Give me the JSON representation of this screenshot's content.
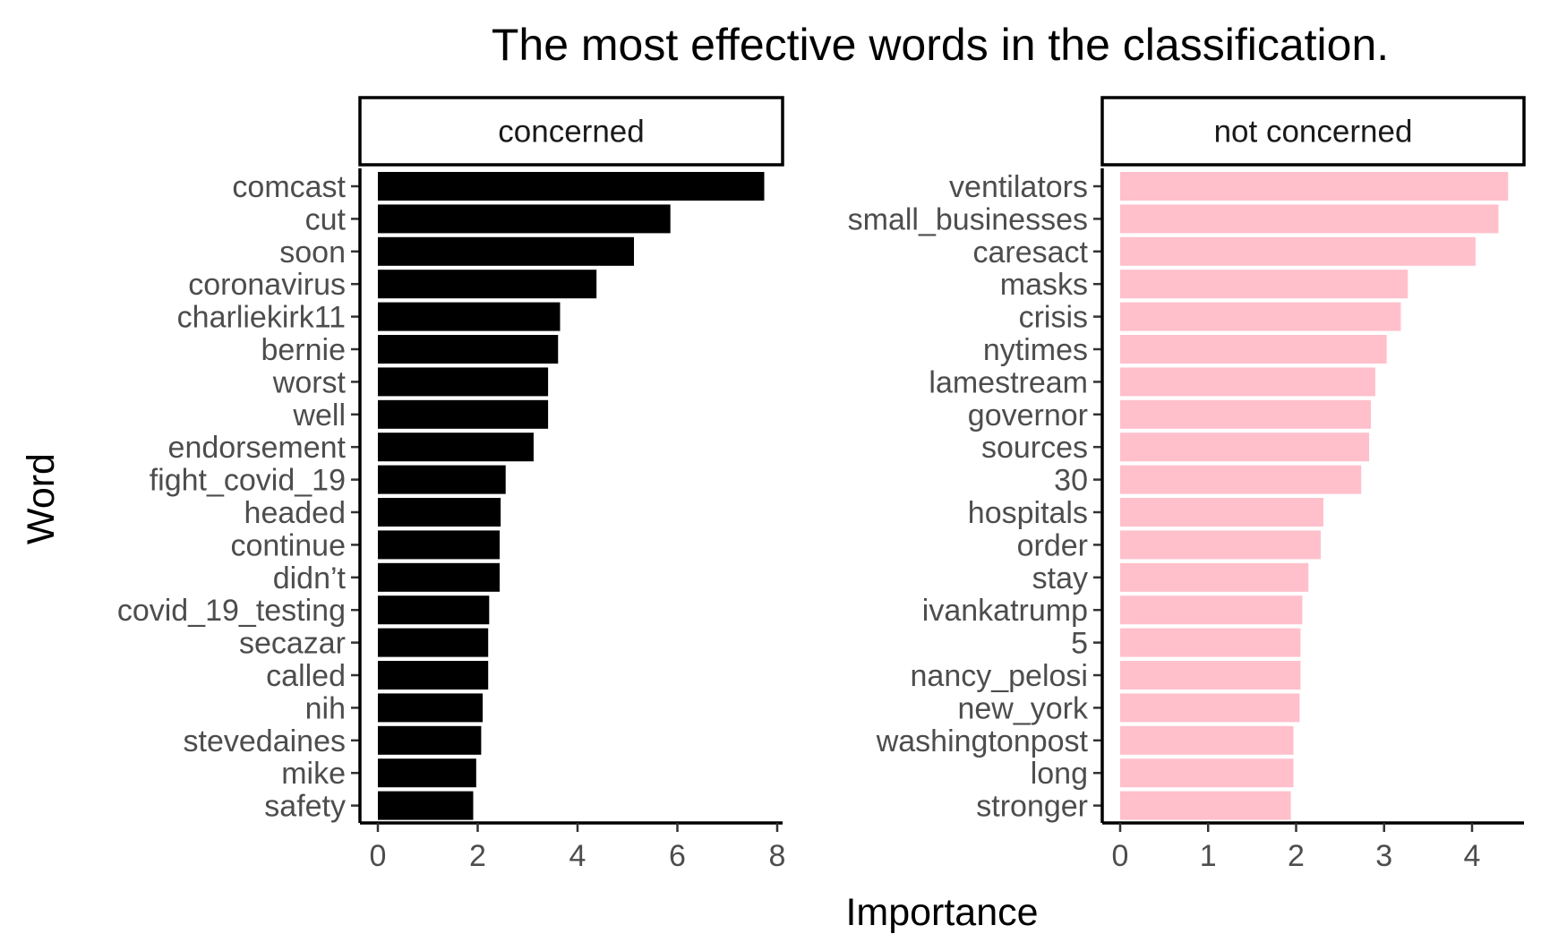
{
  "chart_data": {
    "type": "bar",
    "orientation": "horizontal",
    "title": "The most effective words in the classification.",
    "xlabel": "Importance",
    "ylabel": "Word",
    "grid": false,
    "legend": "none",
    "panels": [
      {
        "name": "concerned",
        "color": "#000000",
        "xlim": [
          0,
          8
        ],
        "xticks": [
          0,
          2,
          4,
          6,
          8
        ],
        "categories": [
          "comcast",
          "cut",
          "soon",
          "coronavirus",
          "charliekirk11",
          "bernie",
          "worst",
          "well",
          "endorsement",
          "fight_covid_19",
          "headed",
          "continue",
          "didn’t",
          "covid_19_testing",
          "secazar",
          "called",
          "nih",
          "stevedaines",
          "mike",
          "safety"
        ],
        "values": [
          7.74,
          5.86,
          5.13,
          4.38,
          3.65,
          3.61,
          3.41,
          3.41,
          3.12,
          2.56,
          2.46,
          2.44,
          2.44,
          2.23,
          2.21,
          2.21,
          2.1,
          2.07,
          1.97,
          1.91
        ]
      },
      {
        "name": "not concerned",
        "color": "#FFC0CB",
        "xlim": [
          0,
          4
        ],
        "xticks": [
          0,
          1,
          2,
          3,
          4
        ],
        "categories": [
          "ventilators",
          "small_businesses",
          "caresact",
          "masks",
          "crisis",
          "nytimes",
          "lamestream",
          "governor",
          "sources",
          "30",
          "hospitals",
          "order",
          "stay",
          "ivankatrump",
          "5",
          "nancy_pelosi",
          "new_york",
          "washingtonpost",
          "long",
          "stronger"
        ],
        "values": [
          4.41,
          4.3,
          4.04,
          3.27,
          3.19,
          3.03,
          2.9,
          2.85,
          2.83,
          2.74,
          2.31,
          2.28,
          2.14,
          2.07,
          2.05,
          2.05,
          2.04,
          1.97,
          1.97,
          1.94
        ]
      }
    ]
  }
}
